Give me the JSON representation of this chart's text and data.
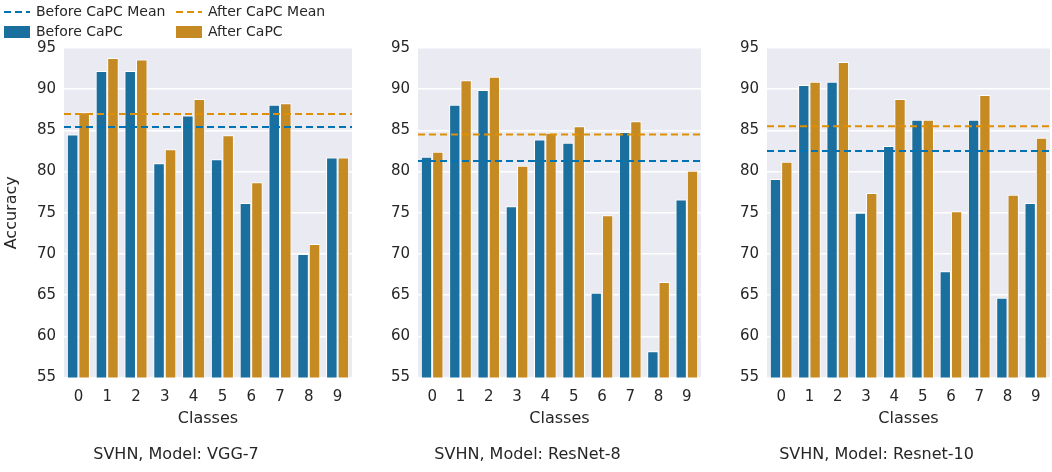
{
  "chart_data": [
    {
      "type": "bar",
      "title": "SVHN, Model: VGG-7",
      "xlabel": "Classes",
      "ylabel": "Accuracy",
      "categories": [
        "0",
        "1",
        "2",
        "3",
        "4",
        "5",
        "6",
        "7",
        "8",
        "9"
      ],
      "series": [
        {
          "name": "Before CaPC",
          "color": "#1a6f9e",
          "values": [
            84.5,
            92.2,
            92.2,
            81.0,
            86.8,
            81.5,
            76.2,
            88.1,
            70.0,
            81.7
          ]
        },
        {
          "name": "After CaPC",
          "color": "#c68a22",
          "values": [
            87.2,
            93.8,
            93.6,
            82.7,
            88.8,
            84.4,
            78.7,
            88.3,
            71.2,
            81.7
          ]
        }
      ],
      "ref_lines": [
        {
          "axis": "y",
          "value": 85.4,
          "label": "Before CaPC Mean",
          "color": "#0173b2",
          "line_style": "dashed"
        },
        {
          "axis": "y",
          "value": 87.0,
          "label": "After CaPC Mean",
          "color": "#de8f05",
          "line_style": "dashed"
        }
      ],
      "ylim": [
        55,
        95
      ],
      "yticks": [
        55,
        60,
        65,
        70,
        75,
        80,
        85,
        90,
        95
      ],
      "grid": "y",
      "legend": "top left"
    },
    {
      "type": "bar",
      "title": "SVHN, Model: ResNet-8",
      "xlabel": "Classes",
      "categories": [
        "0",
        "1",
        "2",
        "3",
        "4",
        "5",
        "6",
        "7",
        "8",
        "9"
      ],
      "series": [
        {
          "color": "#1a6f9e",
          "values": [
            81.8,
            88.1,
            89.9,
            75.8,
            83.9,
            83.5,
            65.3,
            84.8,
            58.2,
            76.6
          ]
        },
        {
          "color": "#c68a22",
          "values": [
            82.4,
            91.1,
            91.5,
            80.7,
            84.7,
            85.5,
            74.7,
            86.1,
            66.6,
            80.1
          ]
        }
      ],
      "ref_lines": [
        {
          "axis": "y",
          "value": 81.3,
          "color": "#0173b2",
          "line_style": "dashed"
        },
        {
          "axis": "y",
          "value": 84.5,
          "color": "#de8f05",
          "line_style": "dashed"
        }
      ],
      "ylim": [
        55,
        95
      ],
      "yticks": [
        55,
        60,
        65,
        70,
        75,
        80,
        85,
        90,
        95
      ],
      "grid": "y"
    },
    {
      "type": "bar",
      "title": "SVHN, Model: Resnet-10",
      "xlabel": "Classes",
      "categories": [
        "0",
        "1",
        "2",
        "3",
        "4",
        "5",
        "6",
        "7",
        "8",
        "9"
      ],
      "series": [
        {
          "color": "#1a6f9e",
          "values": [
            79.1,
            90.5,
            90.9,
            75.0,
            83.1,
            86.3,
            67.9,
            86.3,
            64.7,
            76.2
          ]
        },
        {
          "color": "#c68a22",
          "values": [
            81.2,
            90.9,
            93.3,
            77.4,
            88.8,
            86.3,
            75.2,
            89.3,
            77.2,
            84.1
          ]
        }
      ],
      "ref_lines": [
        {
          "axis": "y",
          "value": 82.5,
          "color": "#0173b2",
          "line_style": "dashed"
        },
        {
          "axis": "y",
          "value": 85.5,
          "color": "#de8f05",
          "line_style": "dashed"
        }
      ],
      "ylim": [
        55,
        95
      ],
      "yticks": [
        55,
        60,
        65,
        70,
        75,
        80,
        85,
        90,
        95
      ],
      "grid": "y"
    }
  ]
}
